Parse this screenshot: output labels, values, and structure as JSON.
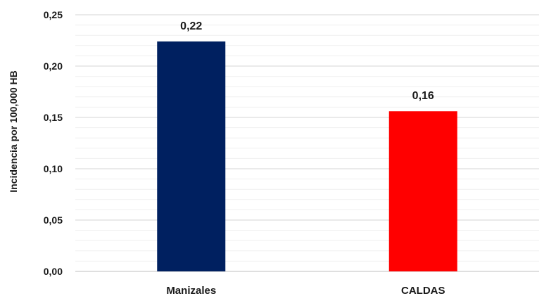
{
  "chart_data": {
    "type": "bar",
    "categories": [
      "Manizales",
      "CALDAS"
    ],
    "values": [
      0.224,
      0.156
    ],
    "data_labels": [
      "0,22",
      "0,16"
    ],
    "colors": [
      "#002060",
      "#FF0000"
    ],
    "title": "",
    "xlabel": "",
    "ylabel": "Incidencia por 100,000 HB",
    "ylim": [
      0,
      0.25
    ],
    "y_ticks": [
      0,
      0.05,
      0.1,
      0.15,
      0.2,
      0.25
    ],
    "y_tick_labels": [
      "0,00",
      "0,05",
      "0,10",
      "0,15",
      "0,20",
      "0,25"
    ],
    "grid": true,
    "minor_grid": true,
    "legend": "none"
  }
}
